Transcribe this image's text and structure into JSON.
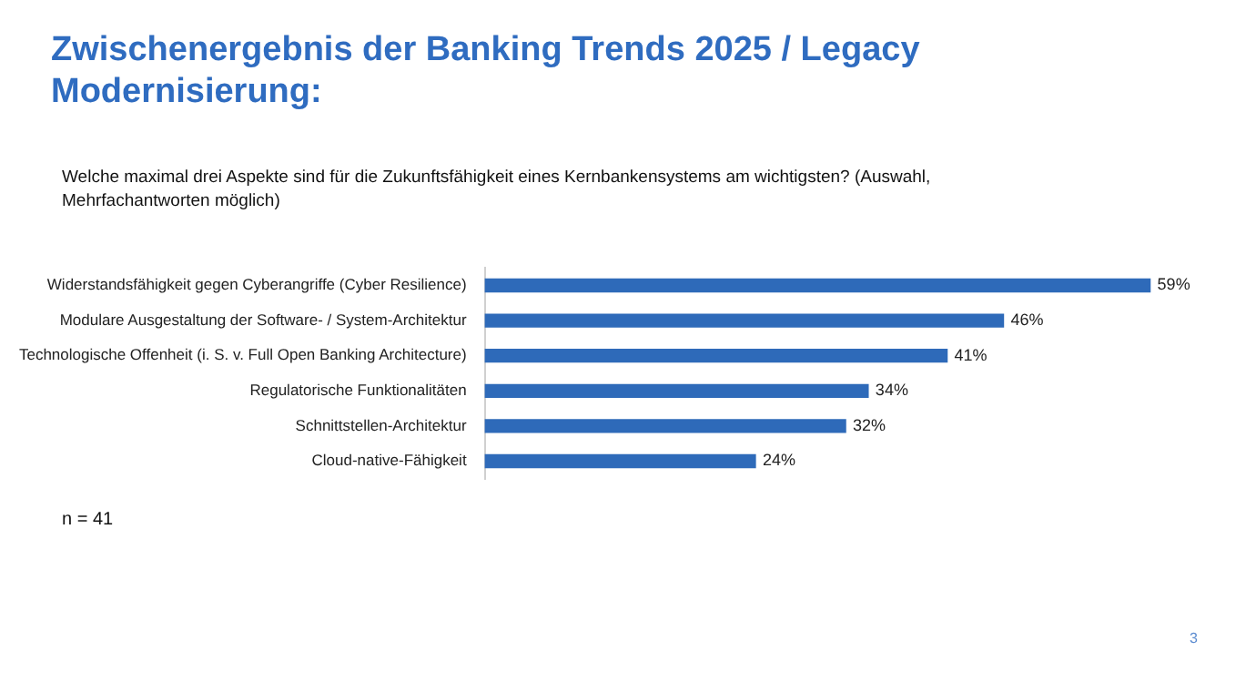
{
  "chart_data": {
    "type": "bar",
    "orientation": "horizontal",
    "title": "Zwischenergebnis der Banking Trends 2025 / Legacy Modernisierung:",
    "subtitle": "Welche maximal drei Aspekte sind für die Zukunftsfähigkeit eines Kernbankensystems am wichtigsten? (Auswahl, Mehrfachantworten möglich)",
    "categories": [
      "Widerstandsfähigkeit gegen Cyberangriffe (Cyber Resilience)",
      "Modulare Ausgestaltung der Software- / System-Architektur",
      "Technologische Offenheit (i. S. v. Full Open Banking Architecture)",
      "Regulatorische Funktionalitäten",
      "Schnittstellen-Architektur",
      "Cloud-native-Fähigkeit"
    ],
    "values": [
      59,
      46,
      41,
      34,
      32,
      24
    ],
    "value_labels": [
      "59%",
      "46%",
      "41%",
      "34%",
      "32%",
      "24%"
    ],
    "color": "#2e6ab9",
    "grid": false,
    "legend": false,
    "tick_labels": "y",
    "annotations": [
      "n = 41",
      "3"
    ]
  }
}
